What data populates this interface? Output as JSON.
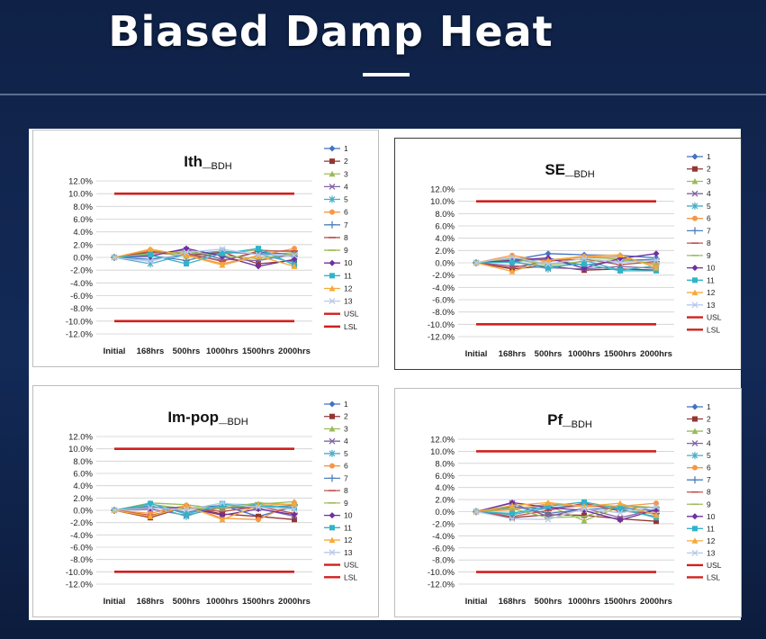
{
  "page": {
    "title": "Biased Damp Heat"
  },
  "legend_labels": [
    "1",
    "2",
    "3",
    "4",
    "5",
    "6",
    "7",
    "8",
    "9",
    "10",
    "11",
    "12",
    "13",
    "USL",
    "LSL"
  ],
  "series_colors": [
    "#4472C4",
    "#943634",
    "#9BBB59",
    "#8064A2",
    "#4BACC6",
    "#F79646",
    "#4F81BD",
    "#C0504D",
    "#9BBB59",
    "#7030A0",
    "#31B3C8",
    "#F5A93B",
    "#B7C9E8"
  ],
  "series_markers": [
    "diamond",
    "square",
    "triangle",
    "x",
    "star",
    "circle",
    "plus",
    "dash",
    "dash",
    "diamond",
    "square",
    "triangle",
    "x"
  ],
  "limit_color": "#D0201E",
  "chart_data": [
    {
      "type": "line",
      "title": "Ith_",
      "title_sub": "BDH",
      "categories": [
        "Initial",
        "168hrs",
        "500hrs",
        "1000hrs",
        "1500hrs",
        "2000hrs"
      ],
      "ylim": [
        -12,
        12
      ],
      "yticks": [
        "12.0%",
        "10.0%",
        "8.0%",
        "6.0%",
        "4.0%",
        "2.0%",
        "0.0%",
        "-2.0%",
        "-4.0%",
        "-6.0%",
        "-8.0%",
        "-10.0%",
        "-12.0%"
      ],
      "y_unit": "%",
      "grid": true,
      "legend": "right",
      "series": [
        {
          "name": "1",
          "values": [
            0,
            -0.3,
            0.5,
            -0.5,
            0.8,
            0.5
          ]
        },
        {
          "name": "2",
          "values": [
            0,
            0.8,
            0.3,
            0.8,
            -1.0,
            -0.5
          ]
        },
        {
          "name": "3",
          "values": [
            0,
            1.0,
            0.2,
            0.5,
            1.2,
            0.8
          ]
        },
        {
          "name": "4",
          "values": [
            0,
            0.5,
            1.2,
            -0.3,
            -0.5,
            0.5
          ]
        },
        {
          "name": "5",
          "values": [
            0,
            -1.0,
            0.5,
            1.0,
            0.5,
            -0.8
          ]
        },
        {
          "name": "6",
          "values": [
            0,
            1.2,
            0.4,
            -1.0,
            0.3,
            1.4
          ]
        },
        {
          "name": "7",
          "values": [
            0,
            0.3,
            -0.5,
            0.8,
            0.6,
            0.2
          ]
        },
        {
          "name": "8",
          "values": [
            0,
            0.9,
            0.6,
            -0.6,
            1.0,
            1.0
          ]
        },
        {
          "name": "9",
          "values": [
            0,
            0.6,
            0.9,
            0.3,
            -0.2,
            0.6
          ]
        },
        {
          "name": "10",
          "values": [
            0,
            0.2,
            1.4,
            0.2,
            -1.4,
            -0.3
          ]
        },
        {
          "name": "11",
          "values": [
            0,
            0.4,
            -1.0,
            0.6,
            1.4,
            -1.2
          ]
        },
        {
          "name": "12",
          "values": [
            0,
            1.3,
            0.3,
            -1.2,
            0.2,
            -1.4
          ]
        },
        {
          "name": "13",
          "values": [
            0,
            -0.6,
            0.8,
            1.3,
            0.4,
            0.3
          ]
        },
        {
          "name": "USL",
          "values": [
            10,
            10,
            10,
            10,
            10,
            10
          ]
        },
        {
          "name": "LSL",
          "values": [
            -10,
            -10,
            -10,
            -10,
            -10,
            -10
          ]
        }
      ]
    },
    {
      "type": "line",
      "title": "SE_",
      "title_sub": "BDH",
      "categories": [
        "Initial",
        "168hrs",
        "500hrs",
        "1000hrs",
        "1500hrs",
        "2000hrs"
      ],
      "ylim": [
        -12,
        12
      ],
      "yticks": [
        "12.0%",
        "10.0%",
        "8.0%",
        "6.0%",
        "4.0%",
        "2.0%",
        "0.0%",
        "-2.0%",
        "-4.0%",
        "-6.0%",
        "-8.0%",
        "-10.0%",
        "-12.0%"
      ],
      "y_unit": "%",
      "grid": true,
      "legend": "right",
      "series": [
        {
          "name": "1",
          "values": [
            0,
            0.5,
            1.5,
            1.3,
            1.2,
            0.8
          ]
        },
        {
          "name": "2",
          "values": [
            0,
            -1.0,
            -0.5,
            -1.2,
            -1.0,
            -1.2
          ]
        },
        {
          "name": "3",
          "values": [
            0,
            0.8,
            0.5,
            0.9,
            0.6,
            0.3
          ]
        },
        {
          "name": "4",
          "values": [
            0,
            -0.5,
            -0.8,
            -1.0,
            -0.6,
            -0.9
          ]
        },
        {
          "name": "5",
          "values": [
            0,
            0.3,
            -1.0,
            0.4,
            -1.2,
            -0.5
          ]
        },
        {
          "name": "6",
          "values": [
            0,
            1.2,
            0.2,
            1.0,
            0.9,
            -0.4
          ]
        },
        {
          "name": "7",
          "values": [
            0,
            0.2,
            0.6,
            -0.4,
            0.3,
            0.6
          ]
        },
        {
          "name": "8",
          "values": [
            0,
            -0.8,
            0.3,
            0.6,
            -0.3,
            0.2
          ]
        },
        {
          "name": "9",
          "values": [
            0,
            0.6,
            -0.3,
            0.2,
            0.5,
            -0.2
          ]
        },
        {
          "name": "10",
          "values": [
            0,
            0.4,
            0.8,
            -0.9,
            0.7,
            1.5
          ]
        },
        {
          "name": "11",
          "values": [
            0,
            0.1,
            -0.6,
            -0.2,
            -1.3,
            -1.3
          ]
        },
        {
          "name": "12",
          "values": [
            0,
            -1.4,
            0.4,
            1.1,
            1.3,
            -0.8
          ]
        },
        {
          "name": "13",
          "values": [
            0,
            0.9,
            -0.2,
            0.7,
            0.1,
            0.4
          ]
        },
        {
          "name": "USL",
          "values": [
            10,
            10,
            10,
            10,
            10,
            10
          ]
        },
        {
          "name": "LSL",
          "values": [
            -10,
            -10,
            -10,
            -10,
            -10,
            -10
          ]
        }
      ]
    },
    {
      "type": "line",
      "title": "Im-pop_",
      "title_sub": "BDH",
      "categories": [
        "Initial",
        "168hrs",
        "500hrs",
        "1000hrs",
        "1500hrs",
        "2000hrs"
      ],
      "ylim": [
        -12,
        12
      ],
      "yticks": [
        "12.0%",
        "10.0%",
        "8.0%",
        "6.0%",
        "4.0%",
        "2.0%",
        "0.0%",
        "-2.0%",
        "-4.0%",
        "-6.0%",
        "-8.0%",
        "-10.0%",
        "-12.0%"
      ],
      "y_unit": "%",
      "grid": true,
      "legend": "right",
      "series": [
        {
          "name": "1",
          "values": [
            0,
            0.5,
            0.3,
            0.8,
            -1.0,
            0.6
          ]
        },
        {
          "name": "2",
          "values": [
            0,
            -1.2,
            0.6,
            -0.6,
            -1.0,
            -1.5
          ]
        },
        {
          "name": "3",
          "values": [
            0,
            1.2,
            0.9,
            0.2,
            1.0,
            1.4
          ]
        },
        {
          "name": "4",
          "values": [
            0,
            0.2,
            -0.8,
            0.5,
            0.3,
            -1.0
          ]
        },
        {
          "name": "5",
          "values": [
            0,
            0.8,
            -1.0,
            1.0,
            0.9,
            0.3
          ]
        },
        {
          "name": "6",
          "values": [
            0,
            -0.5,
            0.8,
            -1.3,
            -1.5,
            1.2
          ]
        },
        {
          "name": "7",
          "values": [
            0,
            0.6,
            -0.3,
            0.6,
            0.4,
            0.8
          ]
        },
        {
          "name": "8",
          "values": [
            0,
            -0.8,
            0.4,
            -0.2,
            0.6,
            -0.5
          ]
        },
        {
          "name": "9",
          "values": [
            0,
            1.0,
            0.2,
            0.4,
            1.2,
            0.9
          ]
        },
        {
          "name": "10",
          "values": [
            0,
            0.3,
            0.5,
            -0.8,
            0.2,
            -0.7
          ]
        },
        {
          "name": "11",
          "values": [
            0,
            1.1,
            -0.6,
            0.9,
            0.7,
            0.5
          ]
        },
        {
          "name": "12",
          "values": [
            0,
            -1.0,
            0.7,
            -1.5,
            0.8,
            1.0
          ]
        },
        {
          "name": "13",
          "values": [
            0,
            0.4,
            0.1,
            1.2,
            0.5,
            0.2
          ]
        },
        {
          "name": "USL",
          "values": [
            10,
            10,
            10,
            10,
            10,
            10
          ]
        },
        {
          "name": "LSL",
          "values": [
            -10,
            -10,
            -10,
            -10,
            -10,
            -10
          ]
        }
      ]
    },
    {
      "type": "line",
      "title": "Pf_",
      "title_sub": "BDH",
      "categories": [
        "Initial",
        "168hrs",
        "500hrs",
        "1000hrs",
        "1500hrs",
        "2000hrs"
      ],
      "ylim": [
        -12,
        12
      ],
      "yticks": [
        "12.0%",
        "10.0%",
        "8.0%",
        "6.0%",
        "4.0%",
        "2.0%",
        "0.0%",
        "-2.0%",
        "-4.0%",
        "-6.0%",
        "-8.0%",
        "-10.0%",
        "-12.0%"
      ],
      "y_unit": "%",
      "grid": true,
      "legend": "right",
      "series": [
        {
          "name": "1",
          "values": [
            0,
            0.8,
            0.5,
            1.0,
            0.9,
            0.6
          ]
        },
        {
          "name": "2",
          "values": [
            0,
            -1.0,
            -0.5,
            -0.6,
            -1.2,
            -1.6
          ]
        },
        {
          "name": "3",
          "values": [
            0,
            0.6,
            1.0,
            -1.5,
            0.8,
            -0.5
          ]
        },
        {
          "name": "4",
          "values": [
            0,
            1.4,
            -0.8,
            0.6,
            -1.0,
            0.4
          ]
        },
        {
          "name": "5",
          "values": [
            0,
            -0.5,
            0.6,
            1.2,
            0.3,
            -0.8
          ]
        },
        {
          "name": "6",
          "values": [
            0,
            0.3,
            1.3,
            0.8,
            0.9,
            1.4
          ]
        },
        {
          "name": "7",
          "values": [
            0,
            0.9,
            -0.3,
            0.4,
            0.6,
            0.2
          ]
        },
        {
          "name": "8",
          "values": [
            0,
            -0.8,
            0.2,
            1.4,
            0.1,
            -0.3
          ]
        },
        {
          "name": "9",
          "values": [
            0,
            0.5,
            -1.0,
            -0.8,
            1.0,
            0.7
          ]
        },
        {
          "name": "10",
          "values": [
            0,
            1.5,
            0.7,
            0.2,
            -1.4,
            0.3
          ]
        },
        {
          "name": "11",
          "values": [
            0,
            -0.3,
            0.9,
            1.6,
            0.5,
            -1.0
          ]
        },
        {
          "name": "12",
          "values": [
            0,
            1.0,
            1.5,
            0.9,
            1.4,
            -0.6
          ]
        },
        {
          "name": "13",
          "values": [
            0,
            -1.2,
            -1.3,
            0.5,
            -0.2,
            0.8
          ]
        },
        {
          "name": "USL",
          "values": [
            10,
            10,
            10,
            10,
            10,
            10
          ]
        },
        {
          "name": "LSL",
          "values": [
            -10,
            -10,
            -10,
            -10,
            -10,
            -10
          ]
        }
      ]
    }
  ]
}
